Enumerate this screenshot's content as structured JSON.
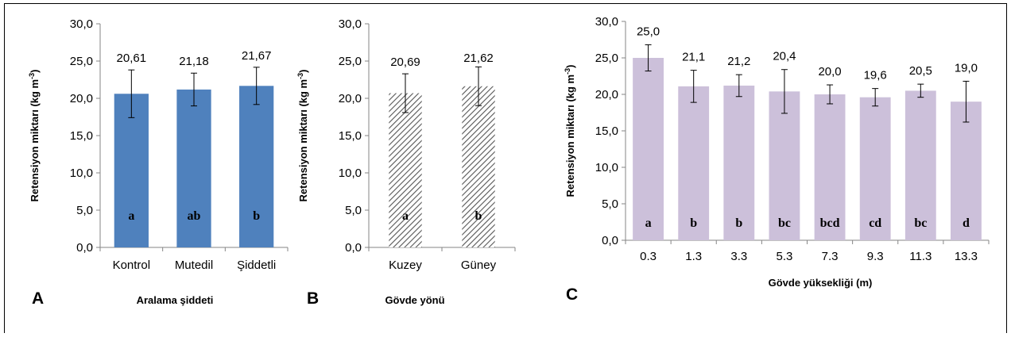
{
  "chart_data": [
    {
      "type": "bar",
      "panel_label": "A",
      "xlabel": "Aralama şiddeti",
      "ylabel": "Retensiyon miktarı (kg m",
      "ylabel_sup": "-3",
      "ylabel_end": ")",
      "ylim": [
        0,
        30
      ],
      "yticks": [
        "0,0",
        "5,0",
        "10,0",
        "15,0",
        "20,0",
        "25,0",
        "30,0"
      ],
      "categories": [
        "Kontrol",
        "Mutedil",
        "Şiddetli"
      ],
      "values": [
        20.61,
        21.18,
        21.67
      ],
      "error": [
        3.2,
        2.2,
        2.5
      ],
      "value_labels": [
        "20,61",
        "21,18",
        "21,67"
      ],
      "group_letters": [
        "a",
        "ab",
        "b"
      ],
      "bar_color": "#4f81bd",
      "fill_pattern": "solid",
      "grid": false
    },
    {
      "type": "bar",
      "panel_label": "B",
      "xlabel": "Gövde yönü",
      "ylabel": "Retensiyon miktarı (kg m",
      "ylabel_sup": "-3",
      "ylabel_end": ")",
      "ylim": [
        0,
        30
      ],
      "yticks": [
        "0,0",
        "5,0",
        "10,0",
        "15,0",
        "20,0",
        "25,0",
        "30,0"
      ],
      "categories": [
        "Kuzey",
        "Güney"
      ],
      "values": [
        20.69,
        21.62
      ],
      "error": [
        2.6,
        2.6
      ],
      "value_labels": [
        "20,69",
        "21,62"
      ],
      "group_letters": [
        "a",
        "b"
      ],
      "bar_color": "#555555",
      "fill_pattern": "diagonal-hatch",
      "grid": false
    },
    {
      "type": "bar",
      "panel_label": "C",
      "xlabel": "Gövde yüksekliği (m)",
      "ylabel": "Retensiyon miktarı (kg m",
      "ylabel_sup": "-3",
      "ylabel_end": ")",
      "ylim": [
        0,
        30
      ],
      "yticks": [
        "0,0",
        "5,0",
        "10,0",
        "15,0",
        "20,0",
        "25,0",
        "30,0"
      ],
      "categories": [
        "0.3",
        "1.3",
        "3.3",
        "5.3",
        "7.3",
        "9.3",
        "11.3",
        "13.3"
      ],
      "values": [
        25.0,
        21.1,
        21.2,
        20.4,
        20.0,
        19.6,
        20.5,
        19.0
      ],
      "error": [
        1.8,
        2.2,
        1.5,
        3.0,
        1.3,
        1.2,
        0.9,
        2.8
      ],
      "value_labels": [
        "25,0",
        "21,1",
        "21,2",
        "20,4",
        "20,0",
        "19,6",
        "20,5",
        "19,0"
      ],
      "group_letters": [
        "a",
        "b",
        "b",
        "bc",
        "bcd",
        "cd",
        "bc",
        "d"
      ],
      "bar_color": "#ccc0da",
      "fill_pattern": "solid",
      "grid": false
    }
  ]
}
